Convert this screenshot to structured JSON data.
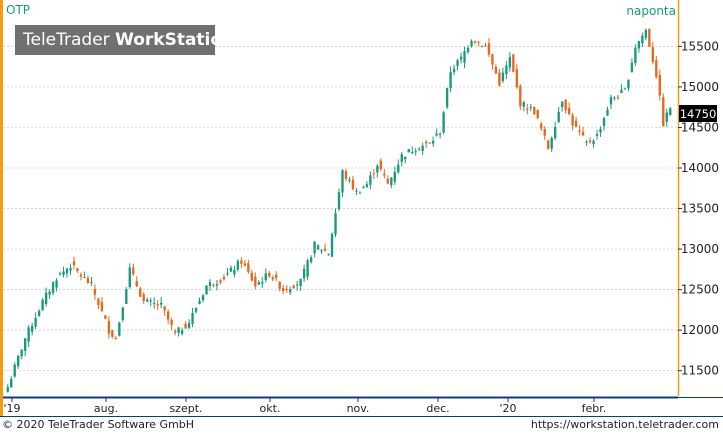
{
  "symbol": "OTP",
  "period": "naponta",
  "logo": {
    "part1": "TeleTrader ",
    "part2": "WorkStation"
  },
  "last_price": "14750",
  "footer": {
    "copyright": "© 2020 TeleTrader Software GmbH",
    "url": "https://workstation.teletrader.com"
  },
  "colors": {
    "up": "#1a9a7a",
    "down": "#e8671e",
    "accent": "#f39c12",
    "axis": "#123a78",
    "price_label_bg": "#000000"
  },
  "chart_data": {
    "type": "candlestick",
    "title": "OTP",
    "interval": "naponta",
    "ylim": [
      11200,
      15850
    ],
    "y_ticks": [
      11500,
      12000,
      12500,
      13000,
      13500,
      14000,
      14500,
      15000,
      15500
    ],
    "x_labels": [
      "'19",
      "aug.",
      "szept.",
      "okt.",
      "nov.",
      "dec.",
      "'20",
      "febr."
    ],
    "grid": true,
    "last_value": 14750,
    "waypoints": [
      [
        0,
        11300
      ],
      [
        5,
        11900
      ],
      [
        10,
        12350
      ],
      [
        14,
        12650
      ],
      [
        18,
        12800
      ],
      [
        24,
        12550
      ],
      [
        29,
        12000
      ],
      [
        31,
        11900
      ],
      [
        35,
        12750
      ],
      [
        39,
        12350
      ],
      [
        44,
        12300
      ],
      [
        48,
        11950
      ],
      [
        52,
        12100
      ],
      [
        57,
        12550
      ],
      [
        62,
        12650
      ],
      [
        67,
        12850
      ],
      [
        71,
        12550
      ],
      [
        75,
        12700
      ],
      [
        79,
        12500
      ],
      [
        84,
        12600
      ],
      [
        88,
        13050
      ],
      [
        92,
        12950
      ],
      [
        96,
        13950
      ],
      [
        100,
        13700
      ],
      [
        103,
        13800
      ],
      [
        106,
        14050
      ],
      [
        109,
        13800
      ],
      [
        113,
        14150
      ],
      [
        117,
        14250
      ],
      [
        121,
        14300
      ],
      [
        124,
        14450
      ],
      [
        127,
        15200
      ],
      [
        130,
        15350
      ],
      [
        133,
        15600
      ],
      [
        137,
        15500
      ],
      [
        141,
        15050
      ],
      [
        144,
        15350
      ],
      [
        147,
        14800
      ],
      [
        151,
        14700
      ],
      [
        155,
        14250
      ],
      [
        159,
        14850
      ],
      [
        162,
        14550
      ],
      [
        166,
        14300
      ],
      [
        169,
        14400
      ],
      [
        173,
        14850
      ],
      [
        177,
        14950
      ],
      [
        180,
        15500
      ],
      [
        183,
        15700
      ],
      [
        186,
        15150
      ],
      [
        188,
        14550
      ],
      [
        190,
        14750
      ]
    ]
  }
}
